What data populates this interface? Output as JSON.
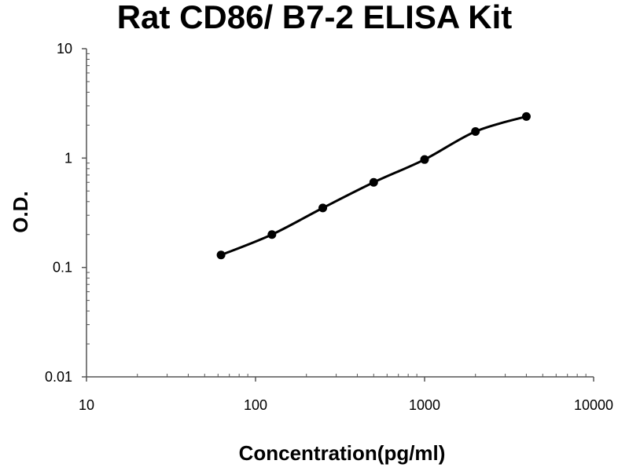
{
  "chart_data": {
    "type": "scatter",
    "title": "Rat CD86/ B7-2 ELISA Kit",
    "xlabel": "Concentration(pg/ml)",
    "ylabel": "O.D.",
    "x_scale": "log",
    "y_scale": "log",
    "xlim": [
      10,
      10000
    ],
    "ylim": [
      0.01,
      10
    ],
    "x_ticks": [
      "10",
      "100",
      "1000",
      "10000"
    ],
    "y_ticks": [
      "0.01",
      "0.1",
      "1",
      "10"
    ],
    "grid": false,
    "legend": "none",
    "series": [
      {
        "points": [
          {
            "x": 62.5,
            "y": 0.13
          },
          {
            "x": 125,
            "y": 0.2
          },
          {
            "x": 250,
            "y": 0.35
          },
          {
            "x": 500,
            "y": 0.6
          },
          {
            "x": 1000,
            "y": 0.97
          },
          {
            "x": 2000,
            "y": 1.75
          },
          {
            "x": 4000,
            "y": 2.4
          }
        ],
        "fit": "smooth-curve"
      }
    ],
    "colors": {
      "marker": "#000000",
      "curve": "#000000",
      "axis": "#555555"
    }
  }
}
